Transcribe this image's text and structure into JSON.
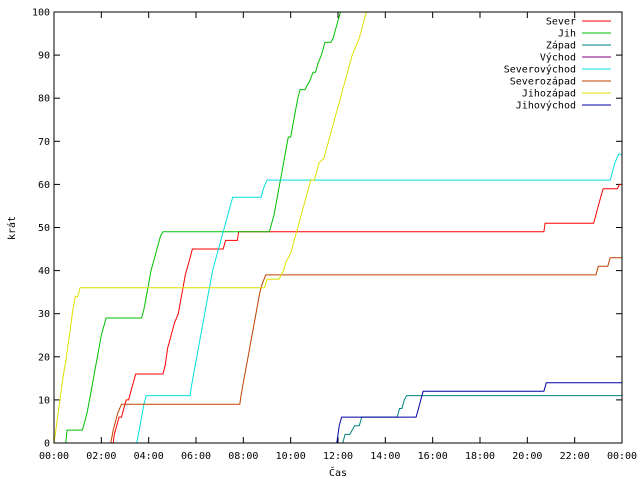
{
  "chart_data": {
    "type": "line",
    "xlabel": "Čas",
    "ylabel": "krát",
    "xlim": [
      0,
      24
    ],
    "ylim": [
      0,
      100
    ],
    "x_ticks": [
      {
        "value": 0,
        "label": "00:00"
      },
      {
        "value": 2,
        "label": "02:00"
      },
      {
        "value": 4,
        "label": "04:00"
      },
      {
        "value": 6,
        "label": "06:00"
      },
      {
        "value": 8,
        "label": "08:00"
      },
      {
        "value": 10,
        "label": "10:00"
      },
      {
        "value": 12,
        "label": "12:00"
      },
      {
        "value": 14,
        "label": "14:00"
      },
      {
        "value": 16,
        "label": "16:00"
      },
      {
        "value": 18,
        "label": "18:00"
      },
      {
        "value": 20,
        "label": "20:00"
      },
      {
        "value": 22,
        "label": "22:00"
      },
      {
        "value": 24,
        "label": "00:00"
      }
    ],
    "y_ticks": [
      0,
      10,
      20,
      30,
      40,
      50,
      60,
      70,
      80,
      90,
      100
    ],
    "grid": false,
    "legend_position": "top-right",
    "series": [
      {
        "name": "Sever",
        "color": "#ff0000",
        "points": [
          [
            2.5,
            0
          ],
          [
            2.55,
            2
          ],
          [
            2.65,
            4
          ],
          [
            2.75,
            6
          ],
          [
            2.85,
            6
          ],
          [
            2.95,
            8
          ],
          [
            3.05,
            10
          ],
          [
            3.15,
            10
          ],
          [
            3.25,
            12
          ],
          [
            3.35,
            14
          ],
          [
            3.45,
            16
          ],
          [
            3.6,
            16
          ],
          [
            4.0,
            16
          ],
          [
            4.5,
            16
          ],
          [
            4.6,
            16
          ],
          [
            4.7,
            18
          ],
          [
            4.8,
            22
          ],
          [
            4.9,
            24
          ],
          [
            5.0,
            26
          ],
          [
            5.1,
            28
          ],
          [
            5.25,
            30
          ],
          [
            5.35,
            33
          ],
          [
            5.45,
            36
          ],
          [
            5.55,
            39
          ],
          [
            5.65,
            41
          ],
          [
            5.75,
            43
          ],
          [
            5.85,
            45
          ],
          [
            6.0,
            45
          ],
          [
            6.5,
            45
          ],
          [
            7.0,
            45
          ],
          [
            7.15,
            45
          ],
          [
            7.25,
            47
          ],
          [
            7.5,
            47
          ],
          [
            7.75,
            47
          ],
          [
            7.8,
            49
          ],
          [
            8.0,
            49
          ],
          [
            9.0,
            49
          ],
          [
            12.0,
            49
          ],
          [
            16.0,
            49
          ],
          [
            20.0,
            49
          ],
          [
            20.7,
            49
          ],
          [
            20.75,
            51
          ],
          [
            21.0,
            51
          ],
          [
            22.0,
            51
          ],
          [
            22.8,
            51
          ],
          [
            22.9,
            53
          ],
          [
            23.0,
            55
          ],
          [
            23.1,
            57
          ],
          [
            23.2,
            59
          ],
          [
            23.5,
            59
          ],
          [
            23.8,
            59
          ],
          [
            23.9,
            60
          ],
          [
            24.0,
            60
          ]
        ]
      },
      {
        "name": "Jih",
        "color": "#00c000",
        "points": [
          [
            0.5,
            0
          ],
          [
            0.55,
            3
          ],
          [
            0.7,
            3
          ],
          [
            1.0,
            3
          ],
          [
            1.2,
            3
          ],
          [
            1.3,
            5
          ],
          [
            1.4,
            7
          ],
          [
            1.5,
            10
          ],
          [
            1.6,
            13
          ],
          [
            1.7,
            16
          ],
          [
            1.8,
            19
          ],
          [
            1.9,
            22
          ],
          [
            2.0,
            25
          ],
          [
            2.1,
            27
          ],
          [
            2.2,
            29
          ],
          [
            2.5,
            29
          ],
          [
            3.0,
            29
          ],
          [
            3.5,
            29
          ],
          [
            3.7,
            29
          ],
          [
            3.8,
            31
          ],
          [
            3.9,
            34
          ],
          [
            4.0,
            37
          ],
          [
            4.1,
            40
          ],
          [
            4.2,
            42
          ],
          [
            4.3,
            44
          ],
          [
            4.4,
            46
          ],
          [
            4.5,
            48
          ],
          [
            4.6,
            49
          ],
          [
            5.0,
            49
          ],
          [
            6.0,
            49
          ],
          [
            7.0,
            49
          ],
          [
            8.0,
            49
          ],
          [
            9.0,
            49
          ],
          [
            9.1,
            49
          ],
          [
            9.2,
            51
          ],
          [
            9.3,
            53
          ],
          [
            9.4,
            56
          ],
          [
            9.5,
            59
          ],
          [
            9.6,
            62
          ],
          [
            9.7,
            65
          ],
          [
            9.8,
            68
          ],
          [
            9.9,
            71
          ],
          [
            10.0,
            71
          ],
          [
            10.1,
            74
          ],
          [
            10.2,
            77
          ],
          [
            10.3,
            80
          ],
          [
            10.4,
            82
          ],
          [
            10.6,
            82
          ],
          [
            10.8,
            84
          ],
          [
            10.95,
            86
          ],
          [
            11.05,
            86
          ],
          [
            11.15,
            88
          ],
          [
            11.3,
            90
          ],
          [
            11.45,
            93
          ],
          [
            11.7,
            93
          ],
          [
            11.8,
            94
          ],
          [
            11.9,
            96
          ],
          [
            12.0,
            98
          ],
          [
            12.1,
            100
          ]
        ]
      },
      {
        "name": "Západ",
        "color": "#008080",
        "points": [
          [
            12.2,
            0
          ],
          [
            12.3,
            2
          ],
          [
            12.5,
            2
          ],
          [
            12.7,
            4
          ],
          [
            12.9,
            4
          ],
          [
            13.0,
            6
          ],
          [
            14.3,
            6
          ],
          [
            14.5,
            6
          ],
          [
            14.6,
            8
          ],
          [
            14.7,
            8
          ],
          [
            14.8,
            10
          ],
          [
            14.9,
            11
          ],
          [
            16.0,
            11
          ],
          [
            18.0,
            11
          ],
          [
            20.0,
            11
          ],
          [
            22.0,
            11
          ],
          [
            24.0,
            11
          ]
        ]
      },
      {
        "name": "Východ",
        "color": "#800080",
        "points": []
      },
      {
        "name": "Severovýchod",
        "color": "#00e0e0",
        "points": [
          [
            3.5,
            0
          ],
          [
            3.6,
            3
          ],
          [
            3.7,
            6
          ],
          [
            3.8,
            9
          ],
          [
            3.9,
            11
          ],
          [
            4.5,
            11
          ],
          [
            5.0,
            11
          ],
          [
            5.5,
            11
          ],
          [
            5.75,
            11
          ],
          [
            5.8,
            13
          ],
          [
            5.9,
            16
          ],
          [
            6.0,
            19
          ],
          [
            6.1,
            22
          ],
          [
            6.2,
            25
          ],
          [
            6.3,
            28
          ],
          [
            6.4,
            31
          ],
          [
            6.5,
            34
          ],
          [
            6.6,
            37
          ],
          [
            6.7,
            40
          ],
          [
            6.8,
            42
          ],
          [
            6.9,
            44
          ],
          [
            7.0,
            46
          ],
          [
            7.1,
            48
          ],
          [
            7.2,
            50
          ],
          [
            7.3,
            52
          ],
          [
            7.4,
            54
          ],
          [
            7.55,
            57
          ],
          [
            8.0,
            57
          ],
          [
            8.5,
            57
          ],
          [
            8.75,
            57
          ],
          [
            8.85,
            59
          ],
          [
            9.0,
            61
          ],
          [
            10.0,
            61
          ],
          [
            12.0,
            61
          ],
          [
            14.0,
            61
          ],
          [
            16.0,
            61
          ],
          [
            18.0,
            61
          ],
          [
            20.0,
            61
          ],
          [
            22.0,
            61
          ],
          [
            23.5,
            61
          ],
          [
            23.6,
            63
          ],
          [
            23.7,
            65
          ],
          [
            23.85,
            67
          ],
          [
            24.0,
            67
          ]
        ]
      },
      {
        "name": "Severozápad",
        "color": "#c04000",
        "points": [
          [
            2.4,
            0
          ],
          [
            2.5,
            3
          ],
          [
            2.6,
            5
          ],
          [
            2.7,
            7
          ],
          [
            2.85,
            9
          ],
          [
            3.5,
            9
          ],
          [
            4.5,
            9
          ],
          [
            5.5,
            9
          ],
          [
            6.5,
            9
          ],
          [
            7.5,
            9
          ],
          [
            7.85,
            9
          ],
          [
            7.9,
            11
          ],
          [
            8.0,
            14
          ],
          [
            8.1,
            17
          ],
          [
            8.2,
            20
          ],
          [
            8.3,
            23
          ],
          [
            8.4,
            26
          ],
          [
            8.5,
            29
          ],
          [
            8.6,
            32
          ],
          [
            8.7,
            35
          ],
          [
            8.8,
            37
          ],
          [
            8.95,
            39
          ],
          [
            10.0,
            39
          ],
          [
            12.0,
            39
          ],
          [
            14.0,
            39
          ],
          [
            16.0,
            39
          ],
          [
            18.0,
            39
          ],
          [
            20.0,
            39
          ],
          [
            22.0,
            39
          ],
          [
            22.9,
            39
          ],
          [
            23.0,
            41
          ],
          [
            23.4,
            41
          ],
          [
            23.5,
            43
          ],
          [
            24.0,
            43
          ]
        ]
      },
      {
        "name": "Jihozápad",
        "color": "#e0e000",
        "points": [
          [
            0,
            0
          ],
          [
            0.1,
            4
          ],
          [
            0.2,
            8
          ],
          [
            0.3,
            12
          ],
          [
            0.4,
            16
          ],
          [
            0.5,
            19
          ],
          [
            0.6,
            23
          ],
          [
            0.7,
            27
          ],
          [
            0.8,
            31
          ],
          [
            0.9,
            34
          ],
          [
            1.0,
            34
          ],
          [
            1.1,
            36
          ],
          [
            2.0,
            36
          ],
          [
            3.0,
            36
          ],
          [
            4.0,
            36
          ],
          [
            5.0,
            36
          ],
          [
            6.0,
            36
          ],
          [
            7.0,
            36
          ],
          [
            8.0,
            36
          ],
          [
            8.9,
            36
          ],
          [
            9.0,
            38
          ],
          [
            9.5,
            38
          ],
          [
            9.7,
            40
          ],
          [
            9.8,
            42
          ],
          [
            10.0,
            44
          ],
          [
            10.1,
            46
          ],
          [
            10.2,
            48
          ],
          [
            10.3,
            50
          ],
          [
            10.4,
            52
          ],
          [
            10.5,
            54
          ],
          [
            10.6,
            56
          ],
          [
            10.7,
            58
          ],
          [
            10.85,
            61
          ],
          [
            11.0,
            61
          ],
          [
            11.1,
            63
          ],
          [
            11.2,
            65
          ],
          [
            11.4,
            66
          ],
          [
            11.5,
            68
          ],
          [
            11.6,
            70
          ],
          [
            11.7,
            72
          ],
          [
            11.8,
            74
          ],
          [
            11.9,
            76
          ],
          [
            12.0,
            78
          ],
          [
            12.1,
            80
          ],
          [
            12.2,
            82
          ],
          [
            12.3,
            84
          ],
          [
            12.4,
            86
          ],
          [
            12.5,
            88
          ],
          [
            12.6,
            90
          ],
          [
            12.75,
            92
          ],
          [
            12.9,
            94
          ],
          [
            13.0,
            96
          ],
          [
            13.1,
            98
          ],
          [
            13.2,
            100
          ]
        ]
      },
      {
        "name": "Jihovýchod",
        "color": "#0000a0",
        "points": [
          [
            11.95,
            0
          ],
          [
            12.0,
            2
          ],
          [
            12.05,
            4
          ],
          [
            12.15,
            6
          ],
          [
            13.0,
            6
          ],
          [
            14.0,
            6
          ],
          [
            15.0,
            6
          ],
          [
            15.3,
            6
          ],
          [
            15.4,
            8
          ],
          [
            15.5,
            10
          ],
          [
            15.6,
            12
          ],
          [
            16.0,
            12
          ],
          [
            18.0,
            12
          ],
          [
            20.0,
            12
          ],
          [
            20.7,
            12
          ],
          [
            20.8,
            14
          ],
          [
            22.0,
            14
          ],
          [
            24.0,
            14
          ]
        ]
      }
    ]
  }
}
